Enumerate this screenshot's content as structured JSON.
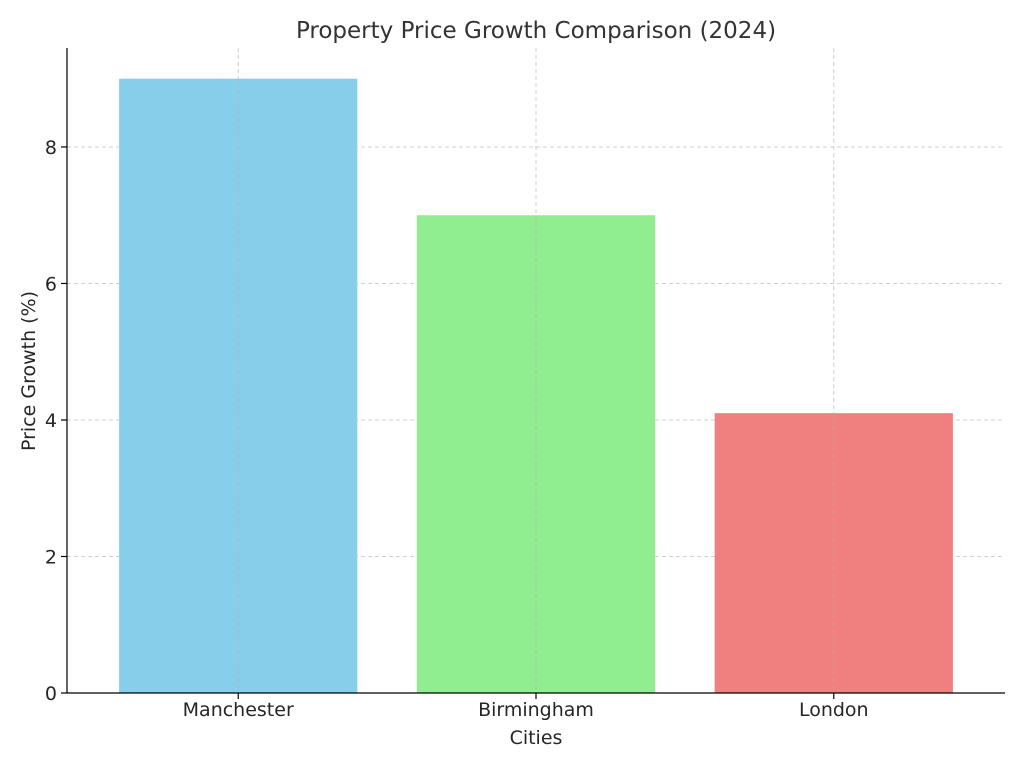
{
  "chart_data": {
    "type": "bar",
    "title": "Property Price Growth Comparison (2024)",
    "xlabel": "Cities",
    "ylabel": "Price Growth (%)",
    "categories": [
      "Manchester",
      "Birmingham",
      "London"
    ],
    "values": [
      9.0,
      7.0,
      4.1
    ],
    "colors": [
      "#87ceeb",
      "#90ee90",
      "#f08080"
    ],
    "ylim": [
      0,
      9.45
    ],
    "yticks": [
      0,
      2,
      4,
      6,
      8
    ],
    "grid": true,
    "legend": "none"
  }
}
